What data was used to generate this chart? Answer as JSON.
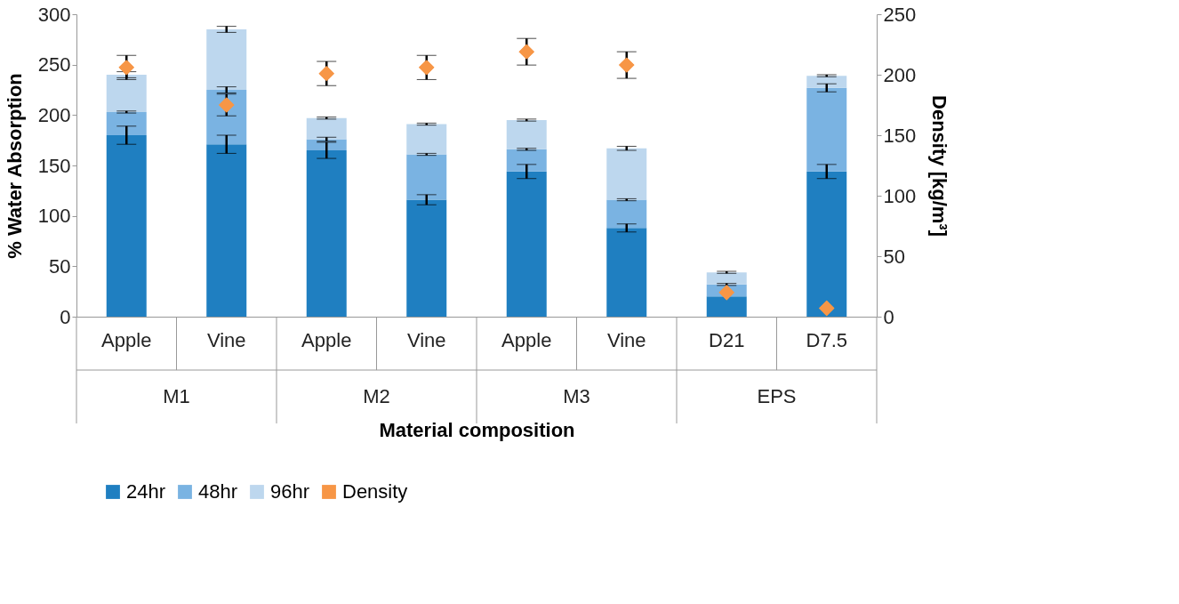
{
  "chart_data": {
    "type": "bar",
    "stacked": true,
    "xlabel": "Material composition",
    "ylabel": "% Water Absorption",
    "y2label": "Density [kg/m³]",
    "categories": [
      "Apple",
      "Vine",
      "Apple",
      "Vine",
      "Apple",
      "Vine",
      "D21",
      "D7.5"
    ],
    "annotations": [
      "M1",
      "M2",
      "M3",
      "EPS"
    ],
    "series": [
      {
        "name": "24hr",
        "color": "#1f7fc1",
        "values": [
          180,
          171,
          165,
          116,
          144,
          88,
          20,
          144
        ],
        "errors": [
          9,
          9,
          8,
          5,
          7,
          4,
          null,
          7
        ]
      },
      {
        "name": "48hr",
        "color": "#7ab3e2",
        "values": [
          23,
          54,
          11,
          45,
          22,
          28,
          12,
          83
        ],
        "errors": [
          1,
          3,
          2,
          1,
          1,
          1,
          1,
          4
        ]
      },
      {
        "name": "96hr",
        "color": "#bdd7ee",
        "values": [
          37,
          60,
          21,
          30,
          29,
          51,
          12,
          12
        ],
        "errors": [
          3,
          3,
          1,
          1,
          1,
          2,
          1,
          1
        ]
      },
      {
        "name": "Density",
        "type": "scatter",
        "axis": "y2",
        "marker": "diamond",
        "color": "#f79646",
        "values": [
          206,
          175,
          201,
          206,
          219,
          208,
          20,
          7
        ],
        "errors": [
          10,
          9,
          10,
          10,
          11,
          11,
          null,
          null
        ]
      }
    ],
    "ylim": [
      0,
      300
    ],
    "yticks": [
      0,
      50,
      100,
      150,
      200,
      250,
      300
    ],
    "y2lim": [
      0,
      250
    ],
    "y2ticks": [
      0,
      50,
      100,
      150,
      200,
      250
    ],
    "grid": false,
    "legend": "bottom"
  }
}
